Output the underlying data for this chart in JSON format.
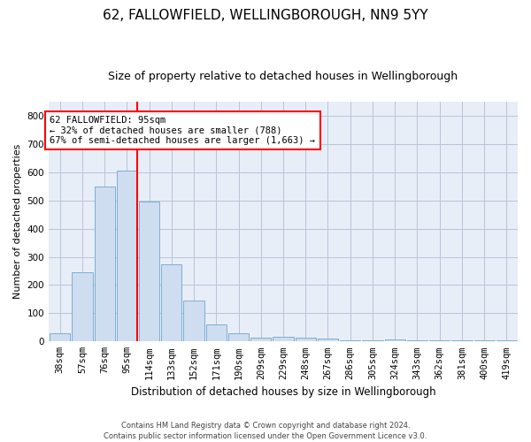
{
  "title": "62, FALLOWFIELD, WELLINGBOROUGH, NN9 5YY",
  "subtitle": "Size of property relative to detached houses in Wellingborough",
  "xlabel": "Distribution of detached houses by size in Wellingborough",
  "ylabel": "Number of detached properties",
  "footer": "Contains HM Land Registry data © Crown copyright and database right 2024.\nContains public sector information licensed under the Open Government Licence v3.0.",
  "categories": [
    "38sqm",
    "57sqm",
    "76sqm",
    "95sqm",
    "114sqm",
    "133sqm",
    "152sqm",
    "171sqm",
    "190sqm",
    "209sqm",
    "229sqm",
    "248sqm",
    "267sqm",
    "286sqm",
    "305sqm",
    "324sqm",
    "343sqm",
    "362sqm",
    "381sqm",
    "400sqm",
    "419sqm"
  ],
  "values": [
    30,
    245,
    548,
    605,
    495,
    275,
    145,
    62,
    28,
    15,
    18,
    12,
    10,
    5,
    4,
    7,
    5,
    3,
    5,
    3,
    3
  ],
  "bar_color": "#cfddf0",
  "bar_edge_color": "#7bafd4",
  "red_line_index": 3,
  "ylim": [
    0,
    850
  ],
  "yticks": [
    0,
    100,
    200,
    300,
    400,
    500,
    600,
    700,
    800
  ],
  "bg_color": "#ffffff",
  "axes_bg_color": "#e8eef8",
  "grid_color": "#b8c4d8",
  "title_fontsize": 11,
  "subtitle_fontsize": 9,
  "tick_fontsize": 7.5,
  "ylabel_fontsize": 8,
  "xlabel_fontsize": 8.5,
  "annotation_fontsize": 7.5,
  "footer_fontsize": 6
}
